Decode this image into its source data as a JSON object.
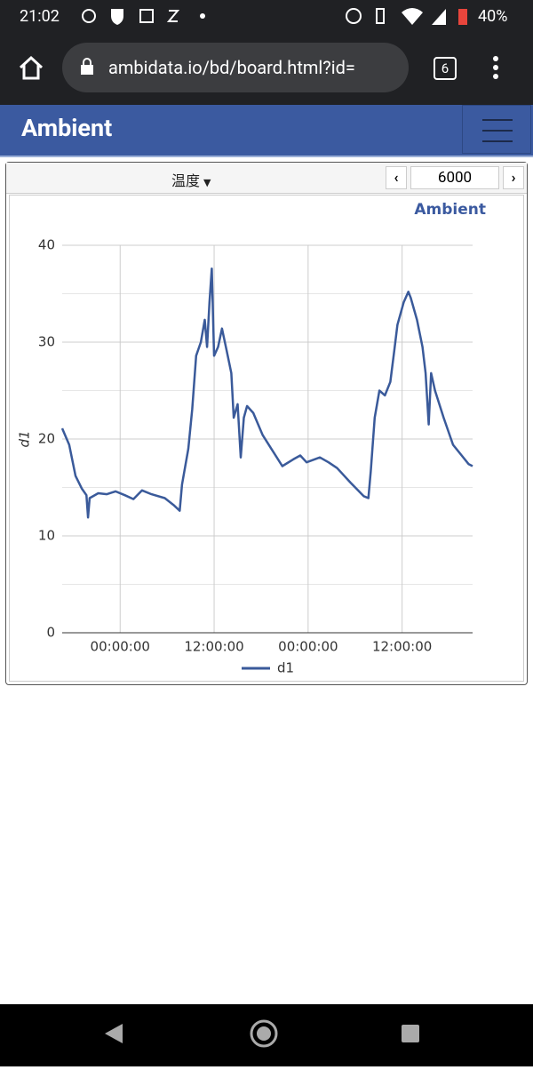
{
  "status_bar": {
    "time": "21:02",
    "battery": "40%"
  },
  "browser": {
    "url": "ambidata.io/bd/board.html?id=",
    "tab_count": "6"
  },
  "header": {
    "title": "Ambient"
  },
  "card": {
    "selector": "温度",
    "range_input": "6000"
  },
  "chart_data": {
    "type": "line",
    "brand": "Ambient",
    "ylabel": "d1",
    "x": [
      -7.4,
      -6.5,
      -5.7,
      -4.9,
      -4.3,
      -4.1,
      -3.9,
      -2.8,
      -1.7,
      -0.6,
      0.6,
      1.7,
      2.8,
      4.0,
      5.7,
      6.8,
      7.6,
      7.9,
      8.7,
      9.2,
      9.7,
      10.3,
      10.8,
      11.1,
      11.4,
      11.7,
      12.0,
      12.5,
      13.0,
      13.6,
      14.2,
      14.5,
      15.0,
      15.4,
      15.8,
      16.2,
      17.0,
      18.2,
      19.3,
      20.7,
      22.1,
      23.0,
      23.8,
      25.5,
      26.6,
      27.7,
      29.4,
      31.1,
      31.7,
      32.0,
      32.5,
      33.1,
      33.8,
      34.5,
      35.0,
      35.4,
      36.2,
      36.8,
      37.1,
      37.9,
      38.6,
      39.0,
      39.4,
      39.7,
      40.2,
      41.3,
      42.5,
      43.6,
      44.5,
      45.0
    ],
    "series": [
      {
        "name": "d1",
        "color": "#3a5a9a",
        "values": [
          21.1,
          19.4,
          16.2,
          14.9,
          14.2,
          11.9,
          13.9,
          14.4,
          14.3,
          14.6,
          14.2,
          13.8,
          14.7,
          14.3,
          13.9,
          13.2,
          12.6,
          15.3,
          19.0,
          23.1,
          28.6,
          30.0,
          32.3,
          29.5,
          34.1,
          37.6,
          28.6,
          29.5,
          31.4,
          29.1,
          26.8,
          22.2,
          23.6,
          18.1,
          22.2,
          23.4,
          22.7,
          20.4,
          19.0,
          17.2,
          17.9,
          18.3,
          17.6,
          18.1,
          17.6,
          17.0,
          15.5,
          14.1,
          13.9,
          16.7,
          22.2,
          25.0,
          24.5,
          25.9,
          29.1,
          31.8,
          34.1,
          35.2,
          34.6,
          32.3,
          29.5,
          26.8,
          21.5,
          26.8,
          25.0,
          22.2,
          19.4,
          18.3,
          17.4,
          17.2
        ]
      }
    ],
    "xlim": [
      -7.4,
      45.0
    ],
    "ylim": [
      0,
      40
    ],
    "xticks": [
      {
        "value": 0,
        "label": "00:00:00"
      },
      {
        "value": 12,
        "label": "12:00:00"
      },
      {
        "value": 24,
        "label": "00:00:00"
      },
      {
        "value": 36,
        "label": "12:00:00"
      }
    ],
    "yticks": [
      0,
      10,
      20,
      30,
      40
    ],
    "yminor_grid": [
      5,
      15,
      25,
      35
    ],
    "grid": true
  }
}
